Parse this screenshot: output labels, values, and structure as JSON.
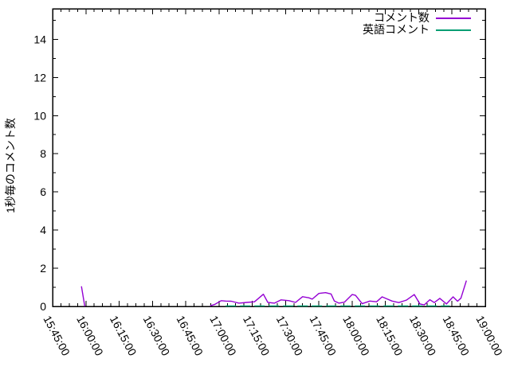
{
  "chart_data": {
    "type": "line",
    "title": "",
    "xlabel": "",
    "ylabel": "1秒毎のコメント数",
    "ylim": [
      0,
      15.6
    ],
    "y_ticks": [
      0,
      2,
      4,
      6,
      8,
      10,
      12,
      14
    ],
    "x_start": "15:45:00",
    "x_end": "19:00:00",
    "x_ticks": [
      "15:45:00",
      "16:00:00",
      "16:15:00",
      "16:30:00",
      "16:45:00",
      "17:00:00",
      "17:15:00",
      "17:30:00",
      "17:45:00",
      "18:00:00",
      "18:15:00",
      "18:30:00",
      "18:45:00",
      "19:00:00"
    ],
    "grid": false,
    "legend_position": "top-right-inside",
    "series": [
      {
        "name": "コメント数",
        "color": "#9400d3",
        "segments": [
          [
            [
              "15:58:00",
              1.05
            ],
            [
              "15:59:30",
              0
            ]
          ],
          [
            [
              "16:56:00",
              0.03
            ],
            [
              "16:58:00",
              0.1
            ],
            [
              "17:01:00",
              0.3
            ],
            [
              "17:03:00",
              0.28
            ],
            [
              "17:05:30",
              0.27
            ],
            [
              "17:09:00",
              0.17
            ],
            [
              "17:12:30",
              0.21
            ],
            [
              "17:16:00",
              0.24
            ],
            [
              "17:20:00",
              0.64
            ],
            [
              "17:22:00",
              0.21
            ],
            [
              "17:25:00",
              0.17
            ],
            [
              "17:28:00",
              0.34
            ],
            [
              "17:31:30",
              0.3
            ],
            [
              "17:34:30",
              0.21
            ],
            [
              "17:37:40",
              0.51
            ],
            [
              "17:40:30",
              0.45
            ],
            [
              "17:42:00",
              0.38
            ],
            [
              "17:45:00",
              0.68
            ],
            [
              "17:48:00",
              0.72
            ],
            [
              "17:50:30",
              0.65
            ],
            [
              "17:52:00",
              0.28
            ],
            [
              "17:54:00",
              0.17
            ],
            [
              "17:56:30",
              0.22
            ],
            [
              "18:00:00",
              0.62
            ],
            [
              "18:01:30",
              0.58
            ],
            [
              "18:04:30",
              0.14
            ],
            [
              "18:08:00",
              0.28
            ],
            [
              "18:11:00",
              0.24
            ],
            [
              "18:13:30",
              0.5
            ],
            [
              "18:15:30",
              0.4
            ],
            [
              "18:18:00",
              0.28
            ],
            [
              "18:21:00",
              0.2
            ],
            [
              "18:24:30",
              0.33
            ],
            [
              "18:28:00",
              0.62
            ],
            [
              "18:30:30",
              0.13
            ],
            [
              "18:32:30",
              0.08
            ],
            [
              "18:35:00",
              0.35
            ],
            [
              "18:37:00",
              0.2
            ],
            [
              "18:39:30",
              0.42
            ],
            [
              "18:42:30",
              0.13
            ],
            [
              "18:45:30",
              0.5
            ],
            [
              "18:47:30",
              0.27
            ],
            [
              "18:49:00",
              0.43
            ],
            [
              "18:51:30",
              1.35
            ]
          ]
        ]
      },
      {
        "name": "英語コメント",
        "color": "#009e73",
        "dash": true,
        "segments": [
          [
            [
              "17:03:00",
              0.02
            ],
            [
              "18:44:00",
              0.02
            ]
          ]
        ]
      }
    ]
  }
}
